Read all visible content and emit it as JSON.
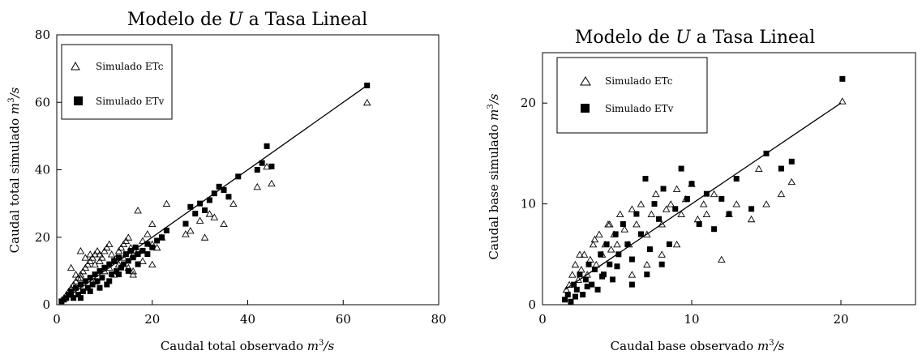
{
  "chart_data": [
    {
      "type": "scatter",
      "title_prefix": "Modelo de ",
      "title_var": "U",
      "title_suffix": " a Tasa Lineal",
      "xlabel_text": "Caudal total observado ",
      "ylabel_text": "Caudal total simulado ",
      "unit_base": "m",
      "unit_exp": "3",
      "unit_tail": "/s",
      "xlim": [
        0,
        80
      ],
      "ylim": [
        0,
        80
      ],
      "xticks": [
        "0",
        "20",
        "40",
        "60",
        "80"
      ],
      "yticks": [
        "0",
        "20",
        "40",
        "60",
        "80"
      ],
      "legend_position": "top-left",
      "fit_line": {
        "x": [
          1,
          65
        ],
        "y": [
          1,
          65
        ]
      },
      "series": [
        {
          "name": "Simulado ETc",
          "marker": "open-triangle",
          "x": [
            1.5,
            2,
            2.5,
            3,
            3.5,
            4,
            4.5,
            5,
            5.5,
            6,
            6.5,
            7,
            7.5,
            8,
            8.5,
            9,
            9.5,
            10,
            10.5,
            11,
            11.5,
            12,
            12.5,
            13,
            13.5,
            14,
            14.5,
            15,
            15.5,
            16,
            17,
            18,
            19,
            20,
            21,
            22,
            3,
            4,
            5,
            6,
            7,
            8,
            9,
            10,
            11,
            12,
            13,
            14,
            15,
            16,
            17,
            18,
            20,
            23,
            27,
            28,
            30,
            31,
            32,
            33,
            35,
            37,
            42,
            44,
            45,
            65,
            5,
            8,
            12,
            16,
            20
          ],
          "y": [
            2,
            3,
            4,
            5,
            6,
            7,
            8,
            9,
            10,
            11,
            12,
            13,
            14,
            15,
            16,
            15,
            14,
            16,
            17,
            18,
            15,
            13,
            14,
            16,
            17,
            18,
            19,
            20,
            17,
            15,
            16,
            19,
            21,
            18,
            17,
            20,
            11,
            9,
            16,
            14,
            15,
            12,
            13,
            10,
            11,
            13,
            12,
            14,
            11,
            9,
            28,
            13,
            24,
            30,
            21,
            22,
            25,
            20,
            27,
            26,
            24,
            30,
            35,
            41,
            36,
            60,
            8,
            7,
            9,
            10,
            12
          ]
        },
        {
          "name": "Simulado ETv",
          "marker": "filled-square",
          "x": [
            1,
            1.5,
            2,
            2.5,
            3,
            3.5,
            4,
            4.5,
            5,
            5.5,
            6,
            6.5,
            7,
            7.5,
            8,
            8.5,
            9,
            9.5,
            10,
            10.5,
            11,
            11.5,
            12,
            12.5,
            13,
            13.5,
            14,
            14.5,
            15,
            15.5,
            16,
            16.5,
            17,
            18,
            19,
            20,
            21,
            22,
            23,
            27,
            28,
            29,
            30,
            31,
            32,
            33,
            34,
            35,
            36,
            38,
            42,
            43,
            44,
            45,
            65,
            3,
            5,
            7,
            9,
            11,
            13,
            15,
            17,
            19
          ],
          "y": [
            1,
            1.5,
            2,
            3,
            4,
            2,
            5,
            3,
            6,
            4,
            7,
            5,
            8,
            6,
            9,
            7,
            10,
            8,
            11,
            6,
            12,
            9,
            13,
            10,
            14,
            11,
            12,
            15,
            13,
            16,
            14,
            17,
            15,
            16,
            18,
            17,
            19,
            20,
            22,
            24,
            29,
            27,
            30,
            28,
            31,
            33,
            35,
            34,
            32,
            38,
            40,
            42,
            47,
            41,
            65,
            3,
            2,
            4,
            5,
            7,
            9,
            10,
            12,
            15
          ]
        }
      ]
    },
    {
      "type": "scatter",
      "title_prefix": "Modelo de ",
      "title_var": "U",
      "title_suffix": " a Tasa Lineal",
      "xlabel_text": "Caudal base observado ",
      "ylabel_text": "Caudal base simulado ",
      "unit_base": "m",
      "unit_exp": "3",
      "unit_tail": "/s",
      "xlim": [
        0,
        25
      ],
      "ylim": [
        0,
        25
      ],
      "xticks": [
        "0",
        "10",
        "20"
      ],
      "yticks": [
        "0",
        "10",
        "20"
      ],
      "legend_position": "top-left",
      "fit_line": {
        "x": [
          1.5,
          20
        ],
        "y": [
          1.5,
          20
        ]
      },
      "series": [
        {
          "name": "Simulado ETc",
          "marker": "open-triangle",
          "x": [
            1.6,
            1.8,
            2,
            2.2,
            2.4,
            2.6,
            2.8,
            3,
            3.2,
            3.4,
            3.6,
            3.8,
            4,
            4.2,
            4.4,
            4.6,
            4.8,
            5,
            5.2,
            5.5,
            5.8,
            6,
            6.3,
            6.6,
            7,
            7.3,
            7.6,
            8,
            8.3,
            8.6,
            9,
            9.3,
            9.6,
            10,
            10.4,
            10.8,
            11,
            11.5,
            12,
            12.5,
            13,
            14,
            14.5,
            15,
            16,
            16.7,
            20.1,
            2.5,
            3.5,
            4.5,
            6,
            7,
            8,
            9
          ],
          "y": [
            1.5,
            2,
            3,
            4,
            2.5,
            3.5,
            5,
            3,
            4.5,
            6,
            4,
            7,
            5,
            6,
            8,
            5.5,
            7,
            6,
            9,
            7.5,
            6,
            9.5,
            8,
            10,
            7,
            9,
            11,
            8,
            9.5,
            10,
            11.5,
            9,
            10.5,
            12,
            8.5,
            10,
            9,
            11,
            4.5,
            9,
            10,
            8.5,
            13.5,
            10,
            11,
            12.2,
            20.2,
            5,
            6.5,
            8,
            3,
            4,
            5,
            6
          ]
        },
        {
          "name": "Simulado ETv",
          "marker": "filled-square",
          "x": [
            1.5,
            1.7,
            1.9,
            2.1,
            2.3,
            2.5,
            2.7,
            2.9,
            3.1,
            3.3,
            3.5,
            3.7,
            3.9,
            4.1,
            4.3,
            4.5,
            4.7,
            4.9,
            5.1,
            5.4,
            5.7,
            6,
            6.3,
            6.6,
            6.9,
            7.2,
            7.5,
            7.8,
            8.1,
            8.5,
            8.9,
            9.3,
            9.7,
            10,
            10.5,
            11,
            11.5,
            12,
            12.5,
            13,
            14,
            15,
            16,
            16.7,
            20.1,
            2.2,
            3,
            4,
            5,
            6,
            7,
            8
          ],
          "y": [
            0.5,
            1,
            0.3,
            2,
            1.5,
            3,
            1,
            2.5,
            4,
            2,
            3.5,
            1.5,
            5,
            3,
            6,
            4,
            2.5,
            7,
            5,
            8,
            6,
            4.5,
            9,
            7,
            12.5,
            5.5,
            10,
            8.5,
            11.5,
            6,
            9.5,
            13.5,
            10.5,
            12,
            8,
            11,
            7.5,
            10.5,
            9,
            12.5,
            9.5,
            15,
            13.5,
            14.2,
            22.4,
            0.8,
            1.8,
            2.8,
            3.8,
            2,
            3,
            4
          ]
        }
      ]
    }
  ]
}
